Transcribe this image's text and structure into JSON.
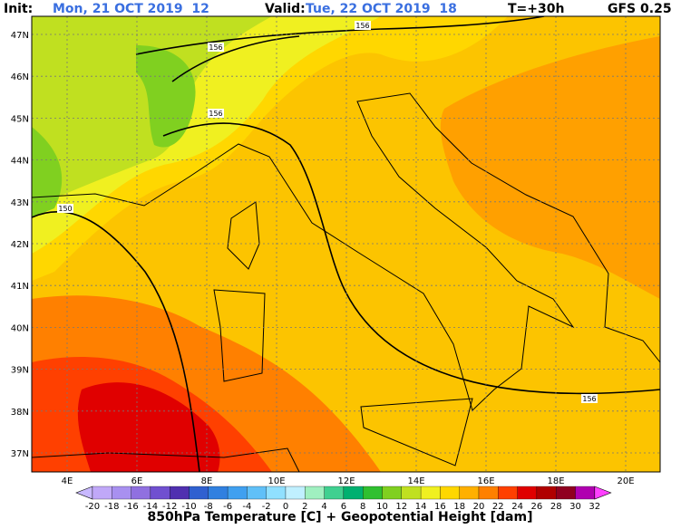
{
  "header": {
    "init_label": "Init:",
    "init_value": "Mon, 21 OCT 2019  12",
    "valid_label": "Valid:",
    "valid_value": "Tue, 22 OCT 2019  18",
    "lead": "T=+30h",
    "model": "GFS 0.25"
  },
  "map": {
    "lat_labels": [
      "47N",
      "46N",
      "45N",
      "44N",
      "43N",
      "42N",
      "41N",
      "40N",
      "39N",
      "38N",
      "37N"
    ],
    "lon_labels": [
      "4E",
      "6E",
      "8E",
      "10E",
      "12E",
      "14E",
      "16E",
      "18E",
      "20E"
    ],
    "contour_labels": [
      "156",
      "156",
      "156",
      "150",
      "156"
    ]
  },
  "colorbar": {
    "labels": [
      -20,
      -18,
      -16,
      -14,
      -12,
      -10,
      -8,
      -6,
      -4,
      -2,
      0,
      2,
      4,
      6,
      8,
      10,
      12,
      14,
      16,
      18,
      20,
      22,
      24,
      26,
      28,
      30,
      32
    ],
    "colors": [
      "#c0a8f8",
      "#a890f0",
      "#9070e0",
      "#7050d0",
      "#5030b0",
      "#3060d0",
      "#3080e0",
      "#40a0f0",
      "#60c0f8",
      "#90e0ff",
      "#c0f0ff",
      "#a0f0c0",
      "#40d090",
      "#00b070",
      "#30c030",
      "#80d020",
      "#c0e020",
      "#f0f020",
      "#ffd700",
      "#ffb000",
      "#ff8000",
      "#ff4000",
      "#e00000",
      "#b00000",
      "#900020",
      "#b000b0"
    ]
  },
  "footer": {
    "title": "850hPa Temperature [C] + Geopotential Height [dam]"
  }
}
